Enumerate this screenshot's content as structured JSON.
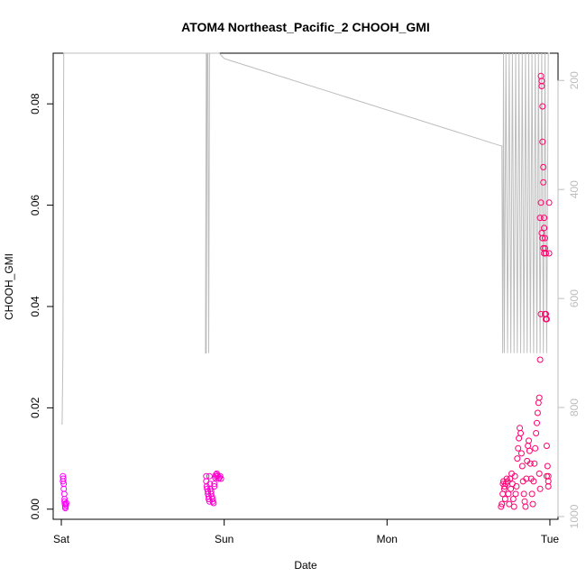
{
  "chart_data": {
    "type": "scatter",
    "title": "ATOM4 Northeast_Pacific_2 CHOOH_GMI",
    "xlabel": "Date",
    "ylabel": "CHOOH_GMI",
    "x_ticks": [
      "Sat",
      "Sun",
      "Mon",
      "Tue"
    ],
    "xlim_days": [
      -0.05,
      3.05
    ],
    "ylim": [
      -0.002,
      0.09
    ],
    "y_ticks": [
      "0.00",
      "0.02",
      "0.04",
      "0.06",
      "0.08"
    ],
    "y_tick_values": [
      0,
      0.02,
      0.04,
      0.06,
      0.08
    ],
    "y2_axis": {
      "reversed": true,
      "lim": [
        1005,
        150
      ],
      "ticks": [
        "200",
        "400",
        "600",
        "800",
        "1000"
      ],
      "tick_values": [
        200,
        400,
        600,
        800,
        1000
      ]
    },
    "colors": {
      "points_start": "#ff00ff",
      "points_end": "#ff0066",
      "pressure_line": "#bdbdbd",
      "axis": "#000000"
    },
    "grid": false,
    "series": [
      {
        "kind": "points",
        "x_days": [
          0.01,
          0.01,
          0.012,
          0.015,
          0.015,
          0.018,
          0.02,
          0.02,
          0.022,
          0.025,
          0.025,
          0.028,
          0.03,
          0.89,
          0.89,
          0.893,
          0.895,
          0.9,
          0.9,
          0.905,
          0.905,
          0.91,
          0.91,
          0.912,
          0.915,
          0.92,
          0.92,
          0.925,
          0.93,
          0.93,
          0.935,
          0.94,
          0.94,
          0.945,
          0.95,
          0.95,
          0.955,
          0.96,
          0.965,
          0.97,
          0.975,
          0.98,
          2.7,
          2.705,
          2.71,
          2.712,
          2.715,
          2.72,
          2.722,
          2.725,
          2.73,
          2.735,
          2.74,
          2.745,
          2.75,
          2.755,
          2.76,
          2.765,
          2.77,
          2.775,
          2.78,
          2.785,
          2.79,
          2.795,
          2.8,
          2.805,
          2.81,
          2.815,
          2.82,
          2.825,
          2.83,
          2.835,
          2.84,
          2.845,
          2.85,
          2.855,
          2.86,
          2.865,
          2.87,
          2.875,
          2.88,
          2.885,
          2.89,
          2.895,
          2.9,
          2.905,
          2.91,
          2.915,
          2.92,
          2.925,
          2.93,
          2.935,
          2.935,
          2.94,
          2.94,
          2.945,
          2.945,
          2.95,
          2.95,
          2.955,
          2.955,
          2.96,
          2.96,
          2.965,
          2.965,
          2.97,
          2.97,
          2.975,
          2.975,
          2.98,
          2.98,
          2.985,
          2.99,
          2.99,
          2.995,
          2.995,
          2.94,
          2.945,
          2.95,
          2.955,
          2.96,
          2.965,
          2.97,
          2.975,
          2.98,
          2.99
        ],
        "values": [
          0.0065,
          0.0055,
          0.006,
          0.005,
          0.004,
          0.003,
          0.002,
          0.0015,
          0.001,
          0.0005,
          0.0002,
          0.0008,
          0.0012,
          0.0065,
          0.0055,
          0.0045,
          0.004,
          0.0035,
          0.003,
          0.0025,
          0.002,
          0.0015,
          0.0065,
          0.005,
          0.004,
          0.0035,
          0.003,
          0.0025,
          0.002,
          0.0015,
          0.0012,
          0.005,
          0.0045,
          0.0062,
          0.0068,
          0.0065,
          0.007,
          0.0066,
          0.006,
          0.0062,
          0.0065,
          0.006,
          0.0005,
          0.001,
          0.003,
          0.005,
          0.0055,
          0.004,
          0.0045,
          0.002,
          0.005,
          0.006,
          0.0055,
          0.003,
          0.001,
          0.006,
          0.004,
          0.007,
          0.005,
          0.002,
          0.0005,
          0.0065,
          0.003,
          0.0045,
          0.01,
          0.012,
          0.014,
          0.016,
          0.015,
          0.011,
          0.0085,
          0.0055,
          0.003,
          0.0015,
          0.0005,
          0.006,
          0.0095,
          0.0125,
          0.0135,
          0.0115,
          0.009,
          0.006,
          0.003,
          0.001,
          0.0055,
          0.009,
          0.012,
          0.015,
          0.017,
          0.019,
          0.021,
          0.022,
          0.007,
          0.0295,
          0.004,
          0.0385,
          0.0855,
          0.0835,
          0.0845,
          0.0795,
          0.0725,
          0.0675,
          0.0645,
          0.0575,
          0.0555,
          0.0535,
          0.0515,
          0.0505,
          0.0385,
          0.0375,
          0.0125,
          0.0085,
          0.0055,
          0.0065,
          0.0505,
          0.0605,
          0.0575,
          0.0605,
          0.0545,
          0.0535,
          0.0515,
          0.0505,
          0.0385,
          0.0375,
          0.0065,
          0.0045
        ]
      },
      {
        "kind": "pressure_line",
        "axis": "right",
        "x_days": [
          0.0,
          0.005,
          0.01,
          0.015,
          0.02,
          0.03,
          0.05,
          0.8,
          0.95,
          0.96,
          0.965,
          0.97,
          0.95,
          0.92,
          0.9,
          0.89,
          0.885,
          0.89,
          0.895,
          0.9,
          0.905,
          0.91,
          0.92,
          0.93,
          0.94,
          0.95,
          0.97,
          1.0,
          2.7,
          2.705,
          2.71,
          2.715,
          2.72,
          2.73,
          2.74,
          2.75,
          2.76,
          2.77,
          2.78,
          2.79,
          2.8,
          2.81,
          2.82,
          2.83,
          2.84,
          2.85,
          2.86,
          2.87,
          2.88,
          2.89,
          2.9,
          2.91,
          2.92,
          2.93,
          2.94,
          2.95,
          2.96,
          2.97,
          2.98,
          2.99,
          3.0
        ],
        "values": [
          830,
          830,
          700,
          150,
          150,
          150,
          150,
          150,
          150,
          150,
          150,
          150,
          150,
          150,
          150,
          150,
          700,
          700,
          150,
          150,
          700,
          150,
          150,
          150,
          150,
          150,
          150,
          160,
          320,
          320,
          700,
          150,
          700,
          150,
          700,
          150,
          700,
          150,
          700,
          150,
          700,
          150,
          700,
          150,
          700,
          150,
          700,
          150,
          700,
          150,
          700,
          150,
          700,
          150,
          700,
          150,
          700,
          150,
          700,
          150,
          150
        ]
      }
    ]
  }
}
